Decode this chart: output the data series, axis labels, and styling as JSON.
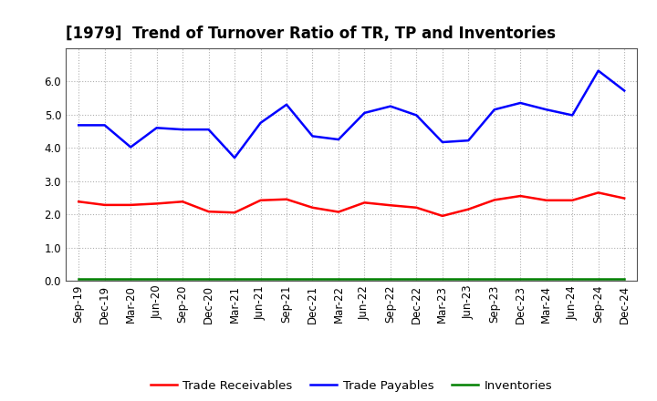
{
  "title": "[1979]  Trend of Turnover Ratio of TR, TP and Inventories",
  "x_labels": [
    "Sep-19",
    "Dec-19",
    "Mar-20",
    "Jun-20",
    "Sep-20",
    "Dec-20",
    "Mar-21",
    "Jun-21",
    "Sep-21",
    "Dec-21",
    "Mar-22",
    "Jun-22",
    "Sep-22",
    "Dec-22",
    "Mar-23",
    "Jun-23",
    "Sep-23",
    "Dec-23",
    "Mar-24",
    "Jun-24",
    "Sep-24",
    "Dec-24"
  ],
  "trade_receivables": [
    2.38,
    2.28,
    2.28,
    2.32,
    2.38,
    2.08,
    2.05,
    2.42,
    2.45,
    2.2,
    2.07,
    2.35,
    2.27,
    2.2,
    1.95,
    2.15,
    2.43,
    2.55,
    2.42,
    2.42,
    2.65,
    2.48
  ],
  "trade_payables": [
    4.68,
    4.68,
    4.02,
    4.6,
    4.55,
    4.55,
    3.7,
    4.75,
    5.3,
    4.35,
    4.25,
    5.05,
    5.25,
    4.98,
    4.17,
    4.22,
    5.15,
    5.35,
    5.15,
    4.98,
    6.32,
    5.72
  ],
  "inventories": [
    0.05,
    0.05,
    0.05,
    0.05,
    0.05,
    0.05,
    0.05,
    0.05,
    0.05,
    0.05,
    0.05,
    0.05,
    0.05,
    0.05,
    0.05,
    0.05,
    0.05,
    0.05,
    0.05,
    0.05,
    0.05,
    0.05
  ],
  "tr_color": "#ff0000",
  "tp_color": "#0000ff",
  "inv_color": "#008000",
  "ylim": [
    0.0,
    7.0
  ],
  "yticks": [
    0.0,
    1.0,
    2.0,
    3.0,
    4.0,
    5.0,
    6.0
  ],
  "bg_color": "#ffffff",
  "grid_color": "#b0b0b0",
  "legend_labels": [
    "Trade Receivables",
    "Trade Payables",
    "Inventories"
  ],
  "title_fontsize": 12,
  "axis_fontsize": 8.5,
  "legend_fontsize": 9.5,
  "line_width": 1.8
}
